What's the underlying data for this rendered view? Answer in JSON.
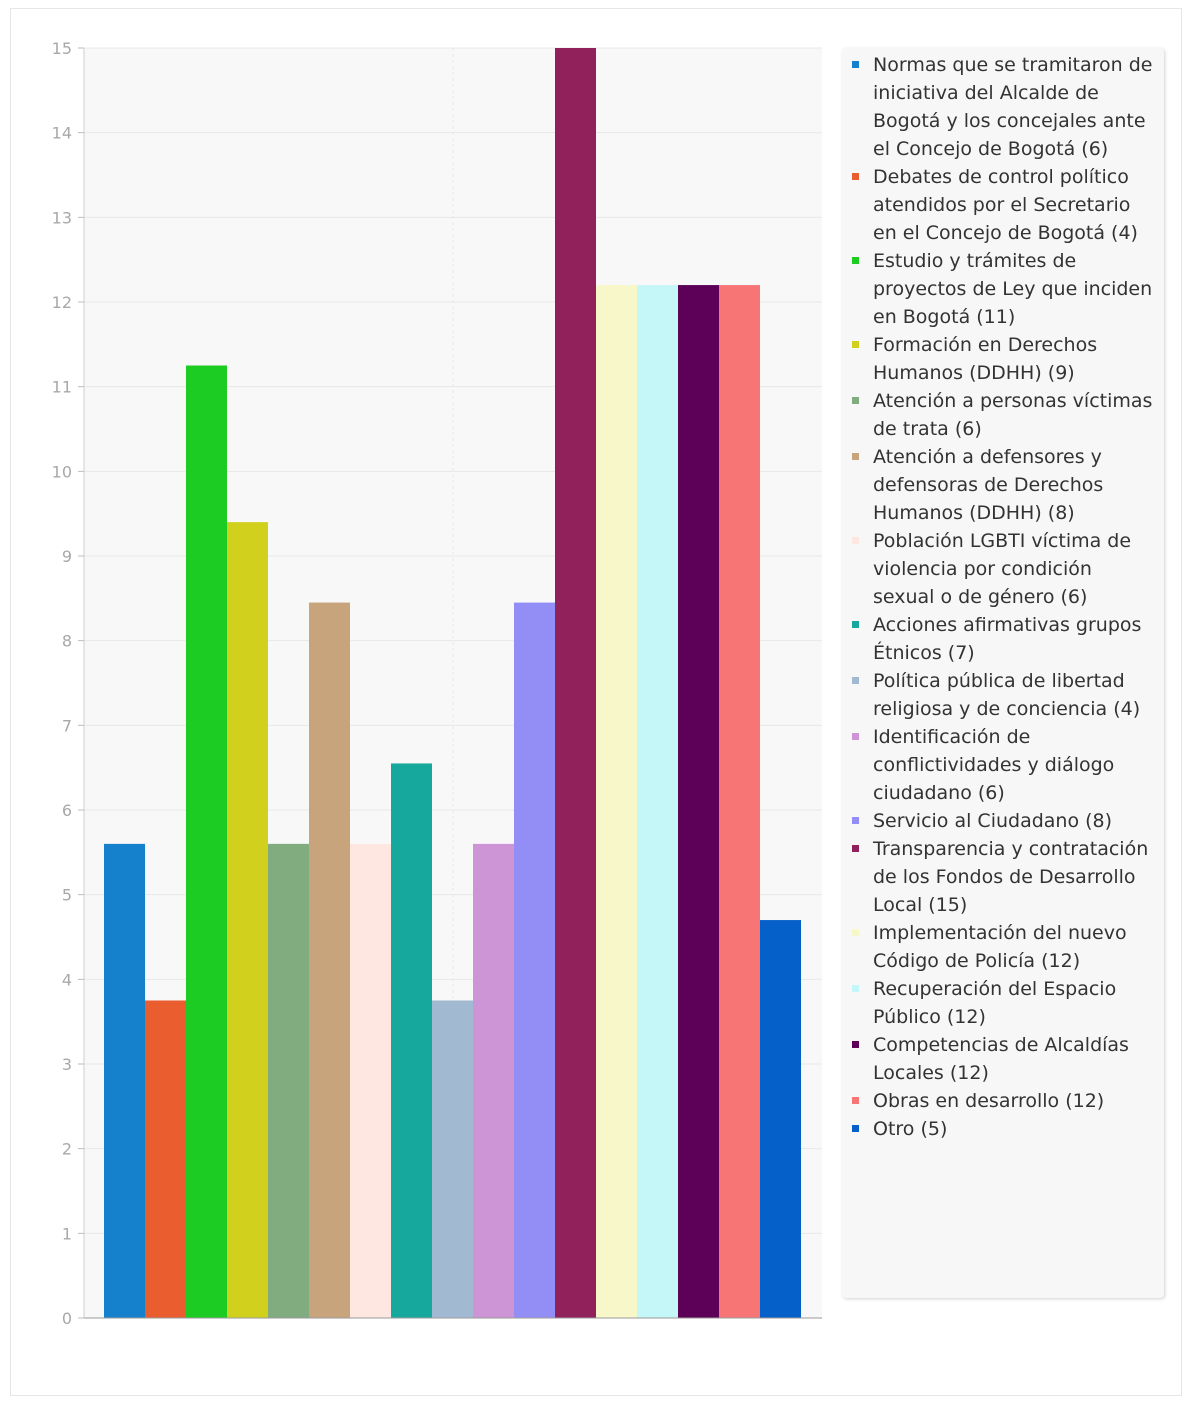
{
  "chart_data": {
    "type": "bar",
    "categories": [
      "Normas que se tramitaron de iniciativa del Alcalde de Bogotá y los concejales ante el Concejo de Bogotá (6)",
      "Debates de control político atendidos por el Secretario en el Concejo de Bogotá (4)",
      "Estudio y trámites de proyectos de Ley que inciden en Bogotá (11)",
      "Formación en Derechos Humanos (DDHH) (9)",
      "Atención a personas víctimas de trata (6)",
      "Atención a defensores y defensoras de Derechos Humanos (DDHH) (8)",
      "Población LGBTI víctima de violencia por condición sexual o de género (6)",
      "Acciones afirmativas grupos Étnicos (7)",
      "Política pública de libertad religiosa y de conciencia (4)",
      "Identificación de conflictividades y diálogo ciudadano (6)",
      "Servicio al Ciudadano (8)",
      "Transparencia y contratación de los Fondos de Desarrollo Local (15)",
      "Implementación del nuevo Código de Policía (12)",
      "Recuperación del Espacio Público (12)",
      "Competencias de Alcaldías Locales (12)",
      "Obras en desarrollo (12)",
      "Otro (5)"
    ],
    "values": [
      5.6,
      3.75,
      11.25,
      9.4,
      5.6,
      8.45,
      5.6,
      6.55,
      3.75,
      5.6,
      8.45,
      15,
      12.2,
      12.2,
      12.2,
      12.2,
      4.7
    ],
    "colors": [
      "#1580cc",
      "#e95d2e",
      "#1ccc22",
      "#d1d01d",
      "#80ac80",
      "#c8a47c",
      "#fde7e0",
      "#17a89d",
      "#a1b9d1",
      "#cd94d6",
      "#928ef6",
      "#91215b",
      "#f8f7c9",
      "#c6f7f8",
      "#5d0058",
      "#f77574",
      "#0560c9"
    ],
    "yticks": [
      "0",
      "1",
      "2",
      "3",
      "4",
      "5",
      "6",
      "7",
      "8",
      "9",
      "10",
      "11",
      "12",
      "13",
      "14",
      "15"
    ],
    "ylim": [
      0,
      15
    ],
    "title": "",
    "xlabel": "",
    "ylabel": "",
    "grid": true,
    "legend_position": "right"
  }
}
